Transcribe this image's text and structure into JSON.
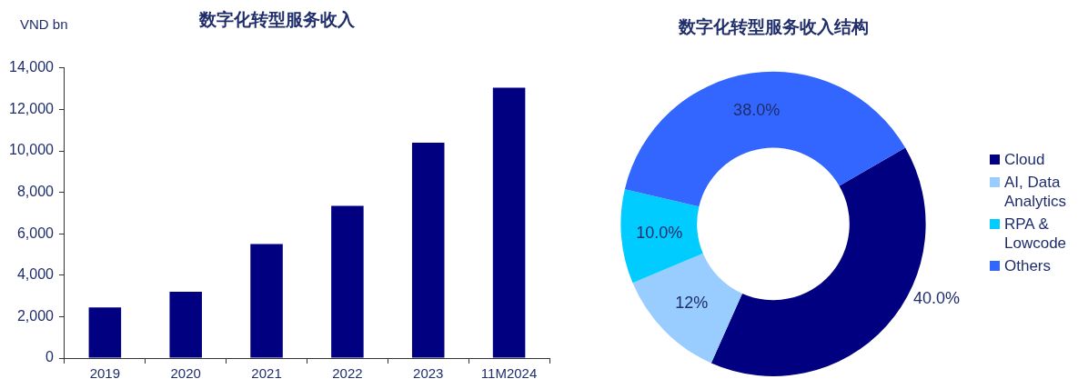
{
  "chart_data": [
    {
      "type": "bar",
      "title": "数字化转型服务收入",
      "ylabel": "VND bn",
      "categories": [
        "2019",
        "2020",
        "2021",
        "2022",
        "2023",
        "11M2024"
      ],
      "values": [
        2440,
        3200,
        5500,
        7350,
        10400,
        13050
      ],
      "color": "#000080",
      "ylim": [
        0,
        14000
      ],
      "yticks": [
        {
          "value": 0,
          "label": "0"
        },
        {
          "value": 2000,
          "label": "2,000"
        },
        {
          "value": 4000,
          "label": "4,000"
        },
        {
          "value": 6000,
          "label": "6,000"
        },
        {
          "value": 8000,
          "label": "8,000"
        },
        {
          "value": 10000,
          "label": "10,000"
        },
        {
          "value": 12000,
          "label": "12,000"
        },
        {
          "value": 14000,
          "label": "14,000"
        }
      ],
      "grid": false,
      "legend": false
    },
    {
      "type": "donut",
      "title": "数字化转型服务收入结构",
      "categories": [
        "Cloud",
        "AI, Data Analytics",
        "RPA & Lowcode",
        "Others"
      ],
      "values": [
        40,
        12,
        10,
        38
      ],
      "colors": [
        "#000080",
        "#99ccff",
        "#00ccff",
        "#3366ff"
      ],
      "value_labels": [
        "40.0%",
        "12%",
        "10.0%",
        "38.0%"
      ],
      "legend": "right"
    }
  ]
}
